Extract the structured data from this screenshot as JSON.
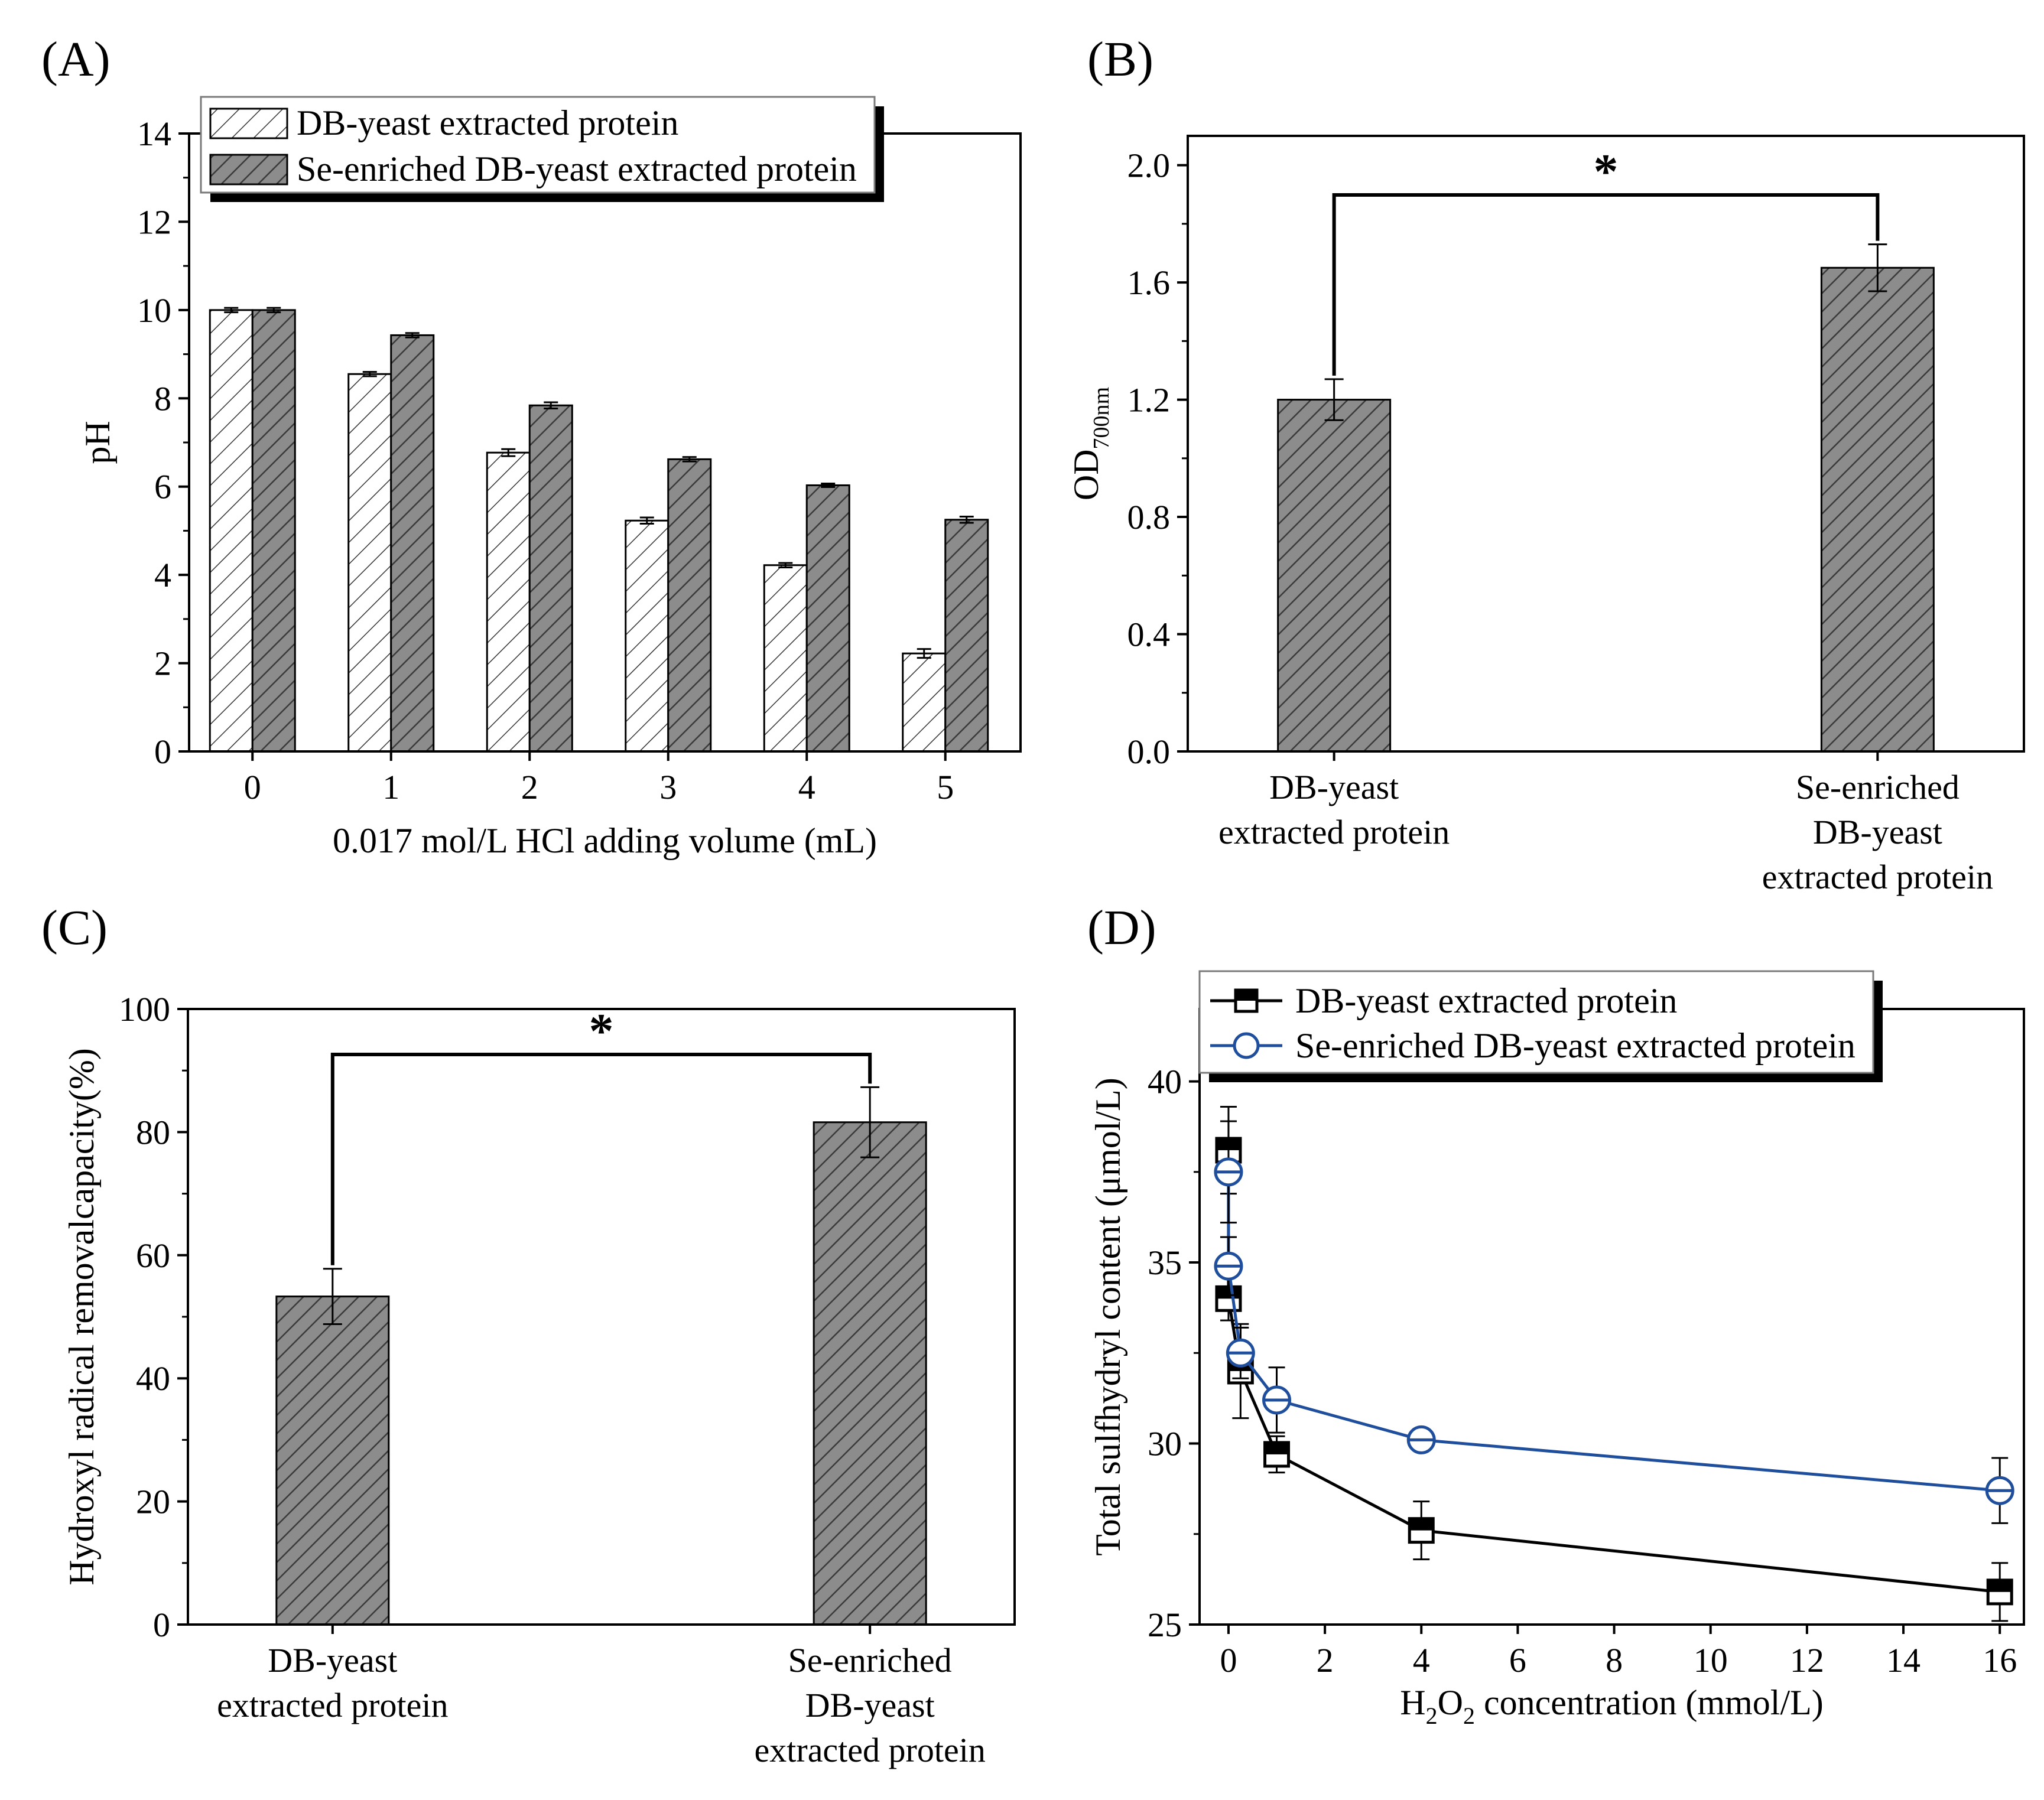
{
  "figure": {
    "colors": {
      "bar_dark": "#8c8c8c",
      "bar_light": "#ffffff",
      "line_black": "#000000",
      "line_blue": "#1f4e9c",
      "axis": "#000000"
    }
  },
  "chart_data": [
    {
      "panel": "(A)",
      "type": "bar",
      "title": "",
      "xlabel": "0.017 mol/L HCl adding volume (mL)",
      "ylabel": "pH",
      "ylim": [
        0,
        14
      ],
      "yticks": [
        "0",
        "2",
        "4",
        "6",
        "8",
        "10",
        "12",
        "14"
      ],
      "categories": [
        "0",
        "1",
        "2",
        "3",
        "4",
        "5"
      ],
      "legend_position": "top-left",
      "series": [
        {
          "name": "DB-yeast extracted protein",
          "pattern": "hatched-white",
          "values": [
            10.0,
            8.55,
            6.77,
            5.23,
            4.22,
            2.22
          ],
          "errors": [
            0.05,
            0.05,
            0.08,
            0.07,
            0.05,
            0.1
          ]
        },
        {
          "name": "Se-enriched DB-yeast extracted protein",
          "pattern": "hatched-gray",
          "values": [
            10.0,
            9.43,
            7.84,
            6.62,
            6.03,
            5.25
          ],
          "errors": [
            0.05,
            0.05,
            0.07,
            0.05,
            0.04,
            0.07
          ]
        }
      ]
    },
    {
      "panel": "(B)",
      "type": "bar",
      "title": "",
      "xlabel": "",
      "ylabel": "OD",
      "ylabel_sub": "700nm",
      "ylim": [
        0,
        2.1
      ],
      "yticks": [
        "0.0",
        "0.4",
        "0.8",
        "1.2",
        "1.6",
        "2.0"
      ],
      "categories": [
        [
          "DB-yeast",
          "extracted protein"
        ],
        [
          "Se-enriched",
          "DB-yeast",
          "extracted protein"
        ]
      ],
      "values": [
        1.2,
        1.65
      ],
      "errors": [
        0.07,
        0.08
      ],
      "significance": "*"
    },
    {
      "panel": "(C)",
      "type": "bar",
      "title": "",
      "xlabel": "",
      "ylabel": "Hydroxyl radical removalcapacity(%)",
      "ylim": [
        0,
        100
      ],
      "yticks": [
        "0",
        "20",
        "40",
        "60",
        "80",
        "100"
      ],
      "categories": [
        [
          "DB-yeast",
          "extracted protein"
        ],
        [
          "Se-enriched",
          "DB-yeast",
          "extracted protein"
        ]
      ],
      "values": [
        53.3,
        81.6
      ],
      "errors": [
        4.5,
        5.7
      ],
      "significance": "*"
    },
    {
      "panel": "(D)",
      "type": "line",
      "title": "",
      "xlabel": "H2O2 concentration (mmol/L)",
      "xlabel_parts": [
        "H",
        "2",
        "O",
        "2",
        " concentration (mmol/L)"
      ],
      "ylabel": "Total sulfhydryl content (μmol/L)",
      "xlim": [
        -0.6,
        16.5
      ],
      "ylim": [
        25,
        42
      ],
      "xticks": [
        "0",
        "2",
        "4",
        "6",
        "8",
        "10",
        "12",
        "14",
        "16"
      ],
      "yticks": [
        "25",
        "30",
        "35",
        "40"
      ],
      "legend_position": "top-left",
      "series": [
        {
          "name": "DB-yeast extracted protein",
          "marker": "half-filled-square",
          "x": [
            0,
            0,
            0.25,
            1,
            4,
            16
          ],
          "y": [
            38.1,
            34.0,
            32.0,
            29.7,
            27.6,
            25.9
          ],
          "errors": [
            1.2,
            0.6,
            1.3,
            0.5,
            0.8,
            0.8
          ]
        },
        {
          "name": "Se-enriched DB-yeast extracted protein",
          "marker": "half-filled-circle",
          "x": [
            0,
            0,
            0.25,
            1,
            4,
            16
          ],
          "y": [
            37.5,
            34.9,
            32.5,
            31.2,
            30.1,
            28.7
          ],
          "errors": [
            1.4,
            0.8,
            0.7,
            0.9,
            0.3,
            0.9
          ]
        }
      ]
    }
  ]
}
